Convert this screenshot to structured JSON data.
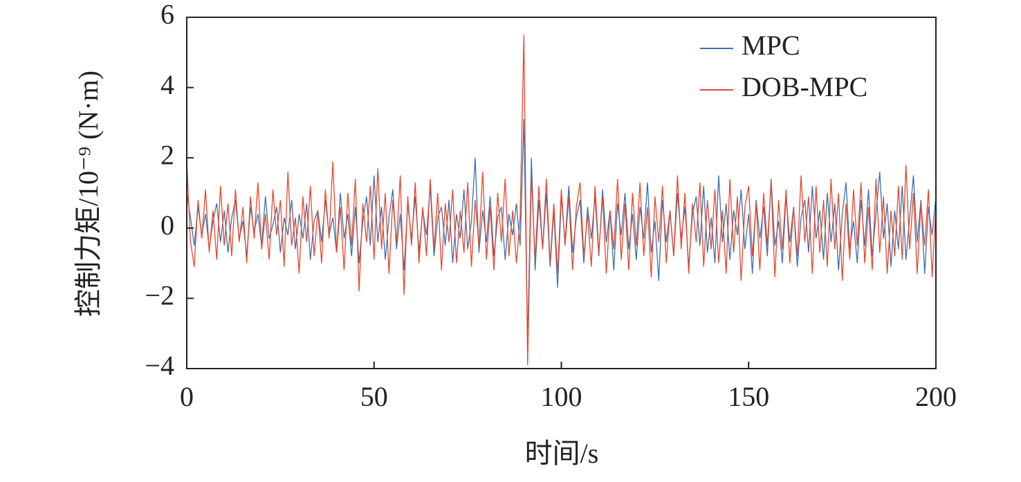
{
  "chart_data": {
    "type": "line",
    "x_label": "时间/s",
    "y_label": "控制力矩/10⁻⁹ (N·m)",
    "xlim": [
      0,
      200
    ],
    "xticks": [
      0,
      50,
      100,
      150,
      200
    ],
    "ylim": [
      -4,
      6
    ],
    "yticks": [
      {
        "value": -4,
        "label": "−4"
      },
      {
        "value": -2,
        "label": "−2"
      },
      0,
      2,
      4,
      6
    ],
    "legend": "upper right",
    "x": [
      0,
      1,
      2,
      3,
      4,
      5,
      6,
      7,
      8,
      9,
      10,
      11,
      12,
      13,
      14,
      15,
      16,
      17,
      18,
      19,
      20,
      21,
      22,
      23,
      24,
      25,
      26,
      27,
      28,
      29,
      30,
      31,
      32,
      33,
      34,
      35,
      36,
      37,
      38,
      39,
      40,
      41,
      42,
      43,
      44,
      45,
      46,
      47,
      48,
      49,
      50,
      51,
      52,
      53,
      54,
      55,
      56,
      57,
      58,
      59,
      60,
      61,
      62,
      63,
      64,
      65,
      66,
      67,
      68,
      69,
      70,
      71,
      72,
      73,
      74,
      75,
      76,
      77,
      78,
      79,
      80,
      81,
      82,
      83,
      84,
      85,
      86,
      87,
      88,
      89,
      90,
      91,
      92,
      93,
      94,
      95,
      96,
      97,
      98,
      99,
      100,
      101,
      102,
      103,
      104,
      105,
      106,
      107,
      108,
      109,
      110,
      111,
      112,
      113,
      114,
      115,
      116,
      117,
      118,
      119,
      120,
      121,
      122,
      123,
      124,
      125,
      126,
      127,
      128,
      129,
      130,
      131,
      132,
      133,
      134,
      135,
      136,
      137,
      138,
      139,
      140,
      141,
      142,
      143,
      144,
      145,
      146,
      147,
      148,
      149,
      150,
      151,
      152,
      153,
      154,
      155,
      156,
      157,
      158,
      159,
      160,
      161,
      162,
      163,
      164,
      165,
      166,
      167,
      168,
      169,
      170,
      171,
      172,
      173,
      174,
      175,
      176,
      177,
      178,
      179,
      180,
      181,
      182,
      183,
      184,
      185,
      186,
      187,
      188,
      189,
      190,
      191,
      192,
      193,
      194,
      195,
      196,
      197,
      198,
      199,
      200
    ],
    "series": [
      {
        "name": "MPC",
        "color": "#3a6fae",
        "values": [
          1.0,
          0.3,
          -0.5,
          0.6,
          -0.2,
          0.4,
          -0.6,
          0.2,
          0.7,
          -0.4,
          0.5,
          -0.7,
          0.3,
          0.8,
          -0.3,
          0.2,
          -0.8,
          0.6,
          -0.1,
          0.4,
          -0.5,
          0.9,
          -0.3,
          0.1,
          0.6,
          -0.7,
          0.3,
          -0.2,
          0.8,
          -0.6,
          0.4,
          -0.3,
          0.7,
          -0.9,
          0.2,
          0.5,
          -0.4,
          0.8,
          -0.2,
          0.3,
          -0.7,
          1.0,
          -0.3,
          0.4,
          -0.8,
          0.6,
          -1.0,
          0.2,
          0.9,
          -0.5,
          1.5,
          -0.4,
          0.6,
          -0.9,
          0.3,
          1.1,
          -0.6,
          0.4,
          -1.2,
          0.7,
          -0.3,
          0.9,
          -0.7,
          0.5,
          -0.2,
          1.2,
          -0.8,
          0.3,
          0.6,
          -0.5,
          0.8,
          -1.0,
          0.4,
          -0.3,
          1.1,
          -0.6,
          0.2,
          2.0,
          -0.7,
          0.5,
          -0.4,
          0.9,
          -0.8,
          0.3,
          0.6,
          -0.9,
          0.4,
          -0.2,
          0.7,
          -0.5,
          3.1,
          -3.3,
          2.0,
          -1.2,
          0.8,
          -0.6,
          1.0,
          -1.1,
          0.5,
          -1.7,
          0.9,
          -0.4,
          1.2,
          -0.7,
          0.3,
          0.8,
          -1.0,
          0.6,
          -0.3,
          0.9,
          -0.8,
          1.1,
          -0.4,
          0.5,
          -1.2,
          0.7,
          -0.2,
          1.0,
          -0.6,
          0.4,
          -0.9,
          0.6,
          -0.3,
          1.3,
          -0.7,
          0.2,
          -1.5,
          0.8,
          -0.4,
          0.5,
          -0.8,
          1.0,
          -0.3,
          0.6,
          -1.1,
          0.4,
          0.9,
          -0.5,
          1.2,
          -0.7,
          0.3,
          -1.0,
          1.5,
          -0.4,
          0.7,
          -0.9,
          0.5,
          -0.2,
          1.1,
          -0.6,
          0.4,
          -1.3,
          0.8,
          -0.3,
          0.6,
          -0.8,
          1.4,
          -0.5,
          0.2,
          -1.0,
          0.9,
          -0.4,
          0.6,
          -1.1,
          0.3,
          0.8,
          -0.7,
          1.2,
          -0.3,
          0.5,
          -0.9,
          1.0,
          -0.4,
          0.7,
          -1.2,
          0.4,
          1.3,
          -0.6,
          0.2,
          -1.0,
          0.8,
          -0.5,
          1.1,
          -0.8,
          0.4,
          1.6,
          -0.3,
          0.7,
          -1.1,
          0.5,
          -0.6,
          1.2,
          -0.9,
          0.3,
          1.5,
          -0.4,
          0.8,
          -1.3,
          0.6,
          -0.2,
          0.9
        ]
      },
      {
        "name": "DOB-MPC",
        "color": "#e8452a",
        "values": [
          1.9,
          -0.4,
          -1.1,
          0.8,
          -0.3,
          1.1,
          -0.7,
          0.5,
          -0.9,
          1.2,
          -0.5,
          0.7,
          -0.8,
          1.1,
          -0.4,
          0.6,
          -1.0,
          0.9,
          -0.3,
          1.3,
          -0.6,
          0.4,
          -0.9,
          1.1,
          -0.2,
          0.8,
          -1.1,
          1.6,
          -0.5,
          0.3,
          -1.3,
          0.9,
          -0.4,
          1.2,
          -0.8,
          0.5,
          -1.0,
          1.1,
          -0.3,
          1.9,
          -0.7,
          0.6,
          -1.2,
          1.0,
          -0.5,
          1.4,
          -1.8,
          0.7,
          -0.4,
          1.2,
          -0.9,
          1.7,
          -0.6,
          1.0,
          -1.3,
          0.8,
          -0.4,
          1.5,
          -1.9,
          0.9,
          -0.5,
          1.3,
          -1.0,
          0.6,
          -0.8,
          1.4,
          -0.6,
          1.0,
          -1.2,
          0.7,
          -0.4,
          1.1,
          -1.0,
          0.5,
          -0.7,
          1.3,
          -1.1,
          0.8,
          -0.5,
          1.6,
          -0.9,
          0.6,
          -1.2,
          1.0,
          -0.4,
          1.4,
          -0.8,
          0.5,
          -1.0,
          0.3,
          5.5,
          -3.9,
          1.5,
          -0.9,
          1.2,
          -0.6,
          1.4,
          -1.0,
          0.7,
          -1.3,
          1.1,
          -0.5,
          0.9,
          -1.2,
          0.6,
          1.3,
          -0.8,
          0.4,
          -1.1,
          1.2,
          -0.7,
          0.9,
          -1.3,
          0.5,
          -0.6,
          1.4,
          -0.9,
          0.7,
          -1.2,
          1.0,
          -0.5,
          1.3,
          -0.8,
          0.6,
          -1.4,
          0.9,
          -0.4,
          1.2,
          -1.0,
          0.5,
          -0.8,
          1.5,
          -0.6,
          1.0,
          -1.3,
          0.7,
          -0.4,
          1.3,
          -1.1,
          0.8,
          -0.6,
          1.1,
          -1.0,
          0.5,
          -1.3,
          1.4,
          -0.7,
          0.9,
          -1.5,
          0.6,
          1.2,
          -0.8,
          0.7,
          -1.2,
          1.0,
          -0.5,
          1.3,
          -1.4,
          0.8,
          -0.6,
          1.1,
          -1.0,
          0.6,
          -0.8,
          1.5,
          -0.4,
          0.9,
          -1.3,
          1.2,
          -0.7,
          0.8,
          -1.1,
          1.4,
          -0.6,
          1.0,
          -1.5,
          0.7,
          -0.9,
          1.1,
          -0.5,
          1.3,
          -1.0,
          0.6,
          -1.2,
          1.4,
          -0.7,
          0.9,
          -1.3,
          0.5,
          -0.8,
          1.2,
          -0.9,
          1.8,
          -0.6,
          1.0,
          -1.3,
          0.7,
          -0.5,
          1.1,
          -1.4,
          0.6
        ]
      }
    ]
  }
}
